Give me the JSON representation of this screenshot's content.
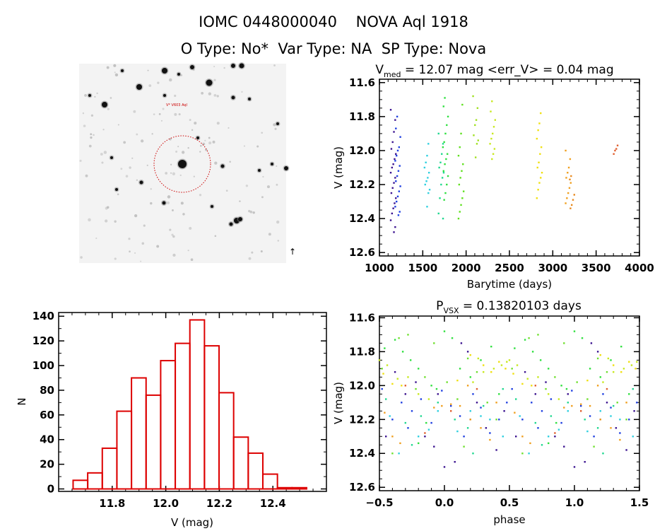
{
  "header": {
    "title": "IOMC 0448000040    NOVA Aql 1918",
    "subtitle": "O Type: No*  Var Type: NA  SP Type: Nova"
  },
  "image_panel": {
    "label": "V* V603 Aql",
    "marker_color": "#cc0000"
  },
  "chart_data": [
    {
      "id": "lightcurve",
      "type": "scatter",
      "title_main": "V",
      "title_sub": "med",
      "title_rest": " = 12.07 mag <err_V> = 0.04 mag",
      "xlabel": "Barytime (days)",
      "ylabel": "V (mag)",
      "xlim": [
        1000,
        4000
      ],
      "ylim": [
        11.58,
        12.62
      ],
      "y_inverted": true,
      "xticks": [
        "1000",
        "1500",
        "2000",
        "2500",
        "3000",
        "3500",
        "4000"
      ],
      "yticks": [
        "11.6",
        "11.8",
        "12.0",
        "12.2",
        "12.4",
        "12.6"
      ],
      "series": [
        {
          "t": 1160,
          "color": "#3c1490",
          "v": [
            11.76,
            11.82,
            11.89,
            11.95,
            11.99,
            12.02,
            12.05,
            12.08,
            12.1,
            12.13,
            12.16,
            12.19,
            12.22,
            12.25,
            12.28,
            12.31,
            12.34,
            12.37,
            12.41,
            12.45,
            12.48
          ]
        },
        {
          "t": 1212,
          "color": "#2040e0",
          "v": [
            11.8,
            11.87,
            11.92,
            11.98,
            12.0,
            12.03,
            12.06,
            12.09,
            12.12,
            12.15,
            12.18,
            12.21,
            12.24,
            12.27,
            12.3,
            12.33,
            12.36,
            12.38
          ]
        },
        {
          "t": 1550,
          "color": "#30d0e0",
          "v": [
            11.96,
            12.03,
            12.07,
            12.1,
            12.13,
            12.16,
            12.18,
            12.2,
            12.23,
            12.25,
            12.33
          ]
        },
        {
          "t": 1712,
          "color": "#20d890",
          "v": [
            11.9,
            11.96,
            12.02,
            12.07,
            12.1,
            12.13,
            12.16,
            12.2,
            12.28,
            12.37,
            12.4
          ]
        },
        {
          "t": 1762,
          "color": "#30e040",
          "v": [
            11.69,
            11.74,
            11.8,
            11.85,
            11.9,
            11.95,
            11.98,
            12.02,
            12.05,
            12.08,
            12.12,
            12.15,
            12.2,
            12.25,
            12.29
          ]
        },
        {
          "t": 1942,
          "color": "#60e020",
          "v": [
            11.73,
            11.9,
            11.98,
            12.03,
            12.08,
            12.12,
            12.16,
            12.2,
            12.24,
            12.28,
            12.32,
            12.36,
            12.4
          ]
        },
        {
          "t": 2110,
          "color": "#a0e020",
          "v": [
            11.68,
            11.75,
            11.82,
            11.85,
            11.91,
            11.94,
            11.96,
            12.04
          ]
        },
        {
          "t": 2306,
          "color": "#c8e820",
          "v": [
            11.71,
            11.77,
            11.82,
            11.86,
            11.9,
            11.93,
            11.96,
            11.99,
            12.02,
            12.05
          ]
        },
        {
          "t": 2846,
          "color": "#f0e010",
          "v": [
            11.78,
            11.84,
            11.88,
            11.93,
            11.98,
            12.02,
            12.07,
            12.1,
            12.13,
            12.16,
            12.19,
            12.23,
            12.28
          ]
        },
        {
          "t": 3178,
          "color": "#f0a020",
          "v": [
            12.0,
            12.05,
            12.1,
            12.13,
            12.16,
            12.19,
            12.22,
            12.25,
            12.28,
            12.31
          ]
        },
        {
          "t": 3219,
          "color": "#e88a20",
          "v": [
            12.15,
            12.17,
            12.26,
            12.29,
            12.32,
            12.34
          ]
        },
        {
          "t": 3733,
          "color": "#e06030",
          "v": [
            11.97,
            11.99,
            12.0,
            12.02
          ]
        }
      ]
    },
    {
      "id": "histogram",
      "type": "bar",
      "xlabel": "V (mag)",
      "ylabel": "N",
      "xlim": [
        11.6,
        12.6
      ],
      "ylim": [
        -2,
        143
      ],
      "xticks": [
        "11.8",
        "12.0",
        "12.2",
        "12.4"
      ],
      "yticks": [
        "0",
        "20",
        "40",
        "60",
        "80",
        "100",
        "120",
        "140"
      ],
      "bin_start": 11.654,
      "bin_width": 0.0545,
      "values": [
        7,
        13,
        33,
        63,
        90,
        76,
        104,
        118,
        137,
        116,
        78,
        42,
        29,
        12,
        1,
        1
      ],
      "color": "#dd0000"
    },
    {
      "id": "phased",
      "type": "scatter",
      "title_main": "P",
      "title_sub": "VSX",
      "title_rest": " = 0.13820103 days",
      "xlabel": "phase",
      "ylabel": "V (mag)",
      "xlim": [
        -0.5,
        1.5
      ],
      "ylim": [
        11.59,
        12.62
      ],
      "y_inverted": true,
      "xticks": [
        "-0.5",
        "0.0",
        "0.5",
        "1.0",
        "1.5"
      ],
      "yticks": [
        "11.6",
        "11.8",
        "12.0",
        "12.2",
        "12.4",
        "12.6"
      ],
      "repeat_period": 1,
      "series": [
        {
          "color": "#3c1490",
          "points": [
            [
              -0.45,
              12.3
            ],
            [
              -0.38,
              11.92
            ],
            [
              -0.3,
              12.05
            ],
            [
              -0.22,
              11.98
            ],
            [
              -0.15,
              12.3
            ],
            [
              -0.08,
              12.36
            ],
            [
              0.0,
              12.48
            ],
            [
              0.08,
              12.45
            ],
            [
              0.13,
              11.75
            ],
            [
              0.18,
              11.8
            ],
            [
              0.25,
              12.1
            ],
            [
              0.32,
              12.25
            ],
            [
              0.4,
              12.38
            ],
            [
              0.46,
              12.15
            ],
            [
              -0.05,
              12.05
            ],
            [
              0.2,
              12.2
            ]
          ]
        },
        {
          "color": "#2040e0",
          "points": [
            [
              -0.48,
              12.02
            ],
            [
              -0.4,
              12.2
            ],
            [
              -0.33,
              12.1
            ],
            [
              -0.25,
              12.15
            ],
            [
              -0.18,
              12.08
            ],
            [
              -0.1,
              12.22
            ],
            [
              -0.02,
              12.03
            ],
            [
              0.05,
              12.12
            ],
            [
              0.12,
              12.18
            ],
            [
              0.22,
              12.05
            ],
            [
              0.28,
              12.13
            ],
            [
              0.35,
              12.28
            ],
            [
              0.42,
              12.2
            ],
            [
              0.48,
              12.1
            ],
            [
              0.15,
              12.3
            ],
            [
              -0.28,
              12.25
            ]
          ]
        },
        {
          "color": "#30d0e0",
          "points": [
            [
              -0.42,
              12.18
            ],
            [
              -0.35,
              12.4
            ],
            [
              -0.2,
              12.3
            ],
            [
              -0.05,
              12.15
            ],
            [
              0.1,
              12.27
            ],
            [
              0.2,
              12.15
            ],
            [
              0.28,
              12.18
            ],
            [
              0.35,
              12.2
            ],
            [
              0.45,
              12.3
            ],
            [
              -0.12,
              12.26
            ]
          ]
        },
        {
          "color": "#20d890",
          "points": [
            [
              -0.45,
              12.08
            ],
            [
              -0.3,
              12.22
            ],
            [
              -0.18,
              12.18
            ],
            [
              -0.05,
              12.1
            ],
            [
              0.08,
              12.2
            ],
            [
              0.18,
              12.25
            ],
            [
              0.3,
              12.12
            ],
            [
              0.45,
              12.02
            ],
            [
              -0.25,
              12.35
            ],
            [
              0.22,
              12.4
            ]
          ]
        },
        {
          "color": "#30e040",
          "points": [
            [
              -0.46,
              11.78
            ],
            [
              -0.38,
              11.73
            ],
            [
              -0.32,
              11.8
            ],
            [
              -0.26,
              11.85
            ],
            [
              -0.2,
              11.9
            ],
            [
              -0.14,
              12.22
            ],
            [
              -0.06,
              12.02
            ],
            [
              0.0,
              11.68
            ],
            [
              0.06,
              11.72
            ],
            [
              0.12,
              11.9
            ],
            [
              0.2,
              11.95
            ],
            [
              0.28,
              11.85
            ],
            [
              0.36,
              11.77
            ],
            [
              0.42,
              12.05
            ],
            [
              -0.1,
              12.0
            ],
            [
              -0.2,
              12.34
            ]
          ]
        },
        {
          "color": "#70e030",
          "points": [
            [
              -0.48,
              11.9
            ],
            [
              -0.35,
              11.72
            ],
            [
              -0.28,
              11.7
            ],
            [
              -0.22,
              12.02
            ],
            [
              -0.15,
              11.95
            ],
            [
              -0.08,
              11.75
            ],
            [
              0.02,
              11.98
            ],
            [
              0.1,
              12.08
            ],
            [
              0.18,
              11.84
            ],
            [
              0.25,
              11.92
            ],
            [
              0.33,
              12.1
            ],
            [
              0.4,
              12.2
            ],
            [
              -0.4,
              12.4
            ],
            [
              0.15,
              12.36
            ]
          ]
        },
        {
          "color": "#c8e820",
          "points": [
            [
              -0.5,
              11.85
            ],
            [
              -0.44,
              11.88
            ],
            [
              -0.36,
              11.96
            ],
            [
              -0.28,
              11.95
            ],
            [
              -0.2,
              12.05
            ],
            [
              -0.12,
              12.08
            ],
            [
              0.22,
              11.98
            ],
            [
              0.3,
              11.92
            ],
            [
              0.38,
              11.9
            ],
            [
              0.44,
              11.88
            ],
            [
              0.48,
              11.86
            ],
            [
              0.26,
              11.84
            ]
          ]
        },
        {
          "color": "#f0e010",
          "points": [
            [
              -0.47,
              11.93
            ],
            [
              -0.4,
              11.99
            ],
            [
              -0.33,
              12.0
            ],
            [
              0.3,
              11.88
            ],
            [
              0.36,
              11.92
            ],
            [
              0.42,
              11.86
            ],
            [
              0.47,
              11.9
            ],
            [
              0.2,
              11.82
            ],
            [
              0.1,
              11.97
            ]
          ]
        },
        {
          "color": "#f0a020",
          "points": [
            [
              -0.46,
              12.16
            ],
            [
              -0.4,
              12.3
            ],
            [
              -0.34,
              12.34
            ],
            [
              -0.08,
              12.13
            ],
            [
              -0.02,
              12.12
            ],
            [
              0.05,
              12.11
            ],
            [
              0.12,
              12.12
            ],
            [
              0.2,
              12.2
            ],
            [
              0.28,
              12.25
            ],
            [
              0.35,
              12.32
            ],
            [
              0.4,
              12.1
            ],
            [
              0.18,
              12.0
            ]
          ]
        },
        {
          "color": "#e06030",
          "points": [
            [
              -0.3,
              12.0
            ],
            [
              0.25,
              12.02
            ],
            [
              0.05,
              12.15
            ],
            [
              -0.15,
              12.28
            ]
          ]
        }
      ]
    }
  ]
}
